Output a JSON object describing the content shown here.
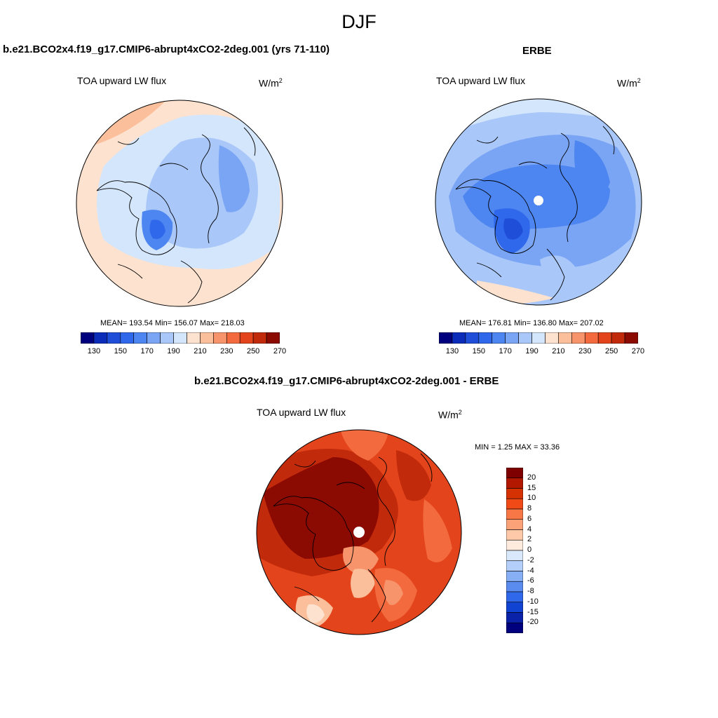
{
  "figure": {
    "title": "DJF",
    "colors": {
      "land_outline": "#000000",
      "missing": "#ffffff"
    }
  },
  "panels": [
    {
      "id": "model",
      "header": "b.e21.BCO2x4.f19_g17.CMIP6-abrupt4xCO2-2deg.001 (yrs 71-110)",
      "subtitle": "TOA upward LW flux",
      "units_base": "W/m",
      "units_exp": "2",
      "stats": "MEAN= 193.54  Min= 156.07  Max= 218.03",
      "colorbar_ticks": [
        "130",
        "150",
        "170",
        "190",
        "210",
        "230",
        "250",
        "270"
      ]
    },
    {
      "id": "obs",
      "header": "ERBE",
      "subtitle": "TOA upward LW flux",
      "units_base": "W/m",
      "units_exp": "2",
      "stats": "MEAN= 176.81  Min= 136.80  Max= 207.02",
      "colorbar_ticks": [
        "130",
        "150",
        "170",
        "190",
        "210",
        "230",
        "250",
        "270"
      ]
    },
    {
      "id": "diff",
      "header": "b.e21.BCO2x4.f19_g17.CMIP6-abrupt4xCO2-2deg.001 - ERBE",
      "subtitle": "TOA upward LW flux",
      "units_base": "W/m",
      "units_exp": "2",
      "stats": "MIN =   1.25 MAX =  33.36",
      "colorbar_ticks": [
        "20",
        "15",
        "10",
        "8",
        "6",
        "4",
        "2",
        "0",
        "-2",
        "-4",
        "-6",
        "-8",
        "-10",
        "-15",
        "-20"
      ]
    }
  ],
  "colorbars": {
    "abs_colors": [
      "#00007f",
      "#0a2cb8",
      "#1f4fd8",
      "#2f68ea",
      "#4d86f0",
      "#7aa5f5",
      "#a9c7f8",
      "#d4e6fb",
      "#fde2cf",
      "#fbbf9b",
      "#f7946b",
      "#f26a3d",
      "#e3441b",
      "#c22a0c",
      "#8b0a02"
    ],
    "diff_colors": [
      "#7f0000",
      "#b21700",
      "#d63100",
      "#f04a16",
      "#f77746",
      "#fba278",
      "#fdc9a8",
      "#feebde",
      "#d9e9fb",
      "#b3cffa",
      "#86aff6",
      "#5a8cf0",
      "#2f68ea",
      "#1143d2",
      "#0a22a8",
      "#00007f"
    ]
  },
  "chart_data": {
    "type": "heatmap",
    "description_fields": "polar stereographic maps, Northern Hemisphere",
    "model": {
      "mean": 193.54,
      "min": 156.07,
      "max": 218.03,
      "levels": [
        130,
        140,
        150,
        160,
        170,
        180,
        190,
        200,
        210,
        220,
        230,
        240,
        250,
        260,
        270
      ]
    },
    "obs": {
      "mean": 176.81,
      "min": 136.8,
      "max": 207.02,
      "levels": [
        130,
        140,
        150,
        160,
        170,
        180,
        190,
        200,
        210,
        220,
        230,
        240,
        250,
        260,
        270
      ]
    },
    "diff": {
      "min": 1.25,
      "max": 33.36,
      "levels": [
        -20,
        -15,
        -10,
        -8,
        -6,
        -4,
        -2,
        0,
        2,
        4,
        6,
        8,
        10,
        15,
        20
      ]
    }
  }
}
